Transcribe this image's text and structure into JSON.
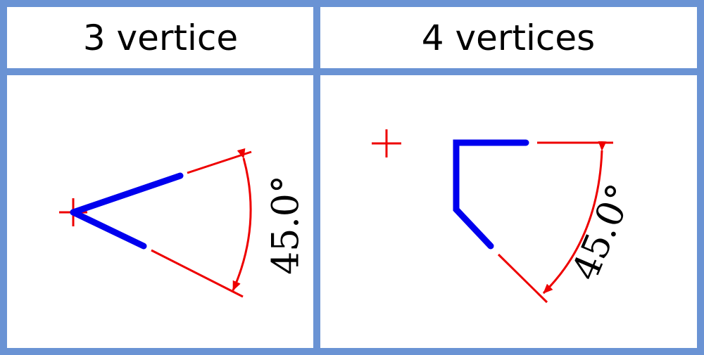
{
  "panels": [
    {
      "title": "3 vertice",
      "angle_label": "45.0°"
    },
    {
      "title": "4 vertices",
      "angle_label": "45.0°"
    }
  ],
  "colors": {
    "grid_border": "#6a93d4",
    "shape_stroke": "#0000ee",
    "dimension_color": "#ee0000",
    "text_color": "#000000"
  }
}
